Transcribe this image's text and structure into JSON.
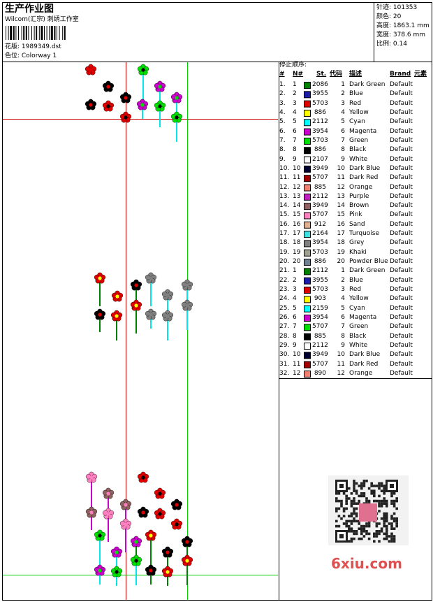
{
  "header": {
    "title": "生产作业图",
    "studio": "Wilcom(汇宗) 刺绣工作室",
    "design": "花版: 1989349.dst",
    "colorway": "色位: Colorway 1"
  },
  "info": [
    "针迹: 101353",
    "颜色: 20",
    "高度: 1863.1 mm",
    "宽度: 378.6 mm",
    "比例: 0.14"
  ],
  "stop_sequence": {
    "title": "停止顺序:",
    "columns": [
      "#",
      "N#",
      "St.",
      "代码",
      "描述",
      "Brand",
      "元素"
    ],
    "rows": [
      [
        "1.",
        "1",
        "2086",
        "1",
        "Dark Green",
        "Default",
        "#008000"
      ],
      [
        "2.",
        "2",
        "3955",
        "2",
        "Blue",
        "Default",
        "#1c1ca8"
      ],
      [
        "3.",
        "3",
        "5703",
        "3",
        "Red",
        "Default",
        "#e00000"
      ],
      [
        "4.",
        "4",
        "886",
        "4",
        "Yellow",
        "Default",
        "#ffff00"
      ],
      [
        "5.",
        "5",
        "2112",
        "5",
        "Cyan",
        "Default",
        "#00ffff"
      ],
      [
        "6.",
        "6",
        "3954",
        "6",
        "Magenta",
        "Default",
        "#cc00cc"
      ],
      [
        "7.",
        "7",
        "5703",
        "7",
        "Green",
        "Default",
        "#00e000"
      ],
      [
        "8.",
        "8",
        "886",
        "8",
        "Black",
        "Default",
        "#000000"
      ],
      [
        "9.",
        "9",
        "2107",
        "9",
        "White",
        "Default",
        "#ffffff"
      ],
      [
        "10.",
        "10",
        "3949",
        "10",
        "Dark Blue",
        "Default",
        "#000030"
      ],
      [
        "11.",
        "11",
        "5707",
        "11",
        "Dark Red",
        "Default",
        "#a00000"
      ],
      [
        "12.",
        "12",
        "885",
        "12",
        "Orange",
        "Default",
        "#f08070"
      ],
      [
        "13.",
        "13",
        "2112",
        "13",
        "Purple",
        "Default",
        "#c020c0"
      ],
      [
        "14.",
        "14",
        "3949",
        "14",
        "Brown",
        "Default",
        "#906060"
      ],
      [
        "15.",
        "15",
        "5707",
        "15",
        "Pink",
        "Default",
        "#ff80c0"
      ],
      [
        "16.",
        "16",
        "912",
        "16",
        "Sand",
        "Default",
        "#e0b090"
      ],
      [
        "17.",
        "17",
        "2164",
        "17",
        "Turquoise",
        "Default",
        "#40e0e0"
      ],
      [
        "18.",
        "18",
        "3954",
        "18",
        "Grey",
        "Default",
        "#808080"
      ],
      [
        "19.",
        "19",
        "5703",
        "19",
        "Khaki",
        "Default",
        "#a0a090"
      ],
      [
        "20.",
        "20",
        "886",
        "20",
        "Powder Blue",
        "Default",
        "#708090"
      ],
      [
        "21.",
        "1",
        "2112",
        "1",
        "Dark Green",
        "Default",
        "#008000"
      ],
      [
        "22.",
        "2",
        "3955",
        "2",
        "Blue",
        "Default",
        "#1c1ca8"
      ],
      [
        "23.",
        "3",
        "5703",
        "3",
        "Red",
        "Default",
        "#e00000"
      ],
      [
        "24.",
        "4",
        "903",
        "4",
        "Yellow",
        "Default",
        "#ffff00"
      ],
      [
        "25.",
        "5",
        "2159",
        "5",
        "Cyan",
        "Default",
        "#00ffff"
      ],
      [
        "26.",
        "6",
        "3954",
        "6",
        "Magenta",
        "Default",
        "#cc00cc"
      ],
      [
        "27.",
        "7",
        "5707",
        "7",
        "Green",
        "Default",
        "#00e000"
      ],
      [
        "28.",
        "8",
        "885",
        "8",
        "Black",
        "Default",
        "#000000"
      ],
      [
        "29.",
        "9",
        "2112",
        "9",
        "White",
        "Default",
        "#ffffff"
      ],
      [
        "30.",
        "10",
        "3949",
        "10",
        "Dark Blue",
        "Default",
        "#000030"
      ],
      [
        "31.",
        "11",
        "5707",
        "11",
        "Dark Red",
        "Default",
        "#a00000"
      ],
      [
        "32.",
        "12",
        "890",
        "12",
        "Orange",
        "Default",
        "#f08070"
      ]
    ]
  },
  "watermark": "6xiu.com"
}
